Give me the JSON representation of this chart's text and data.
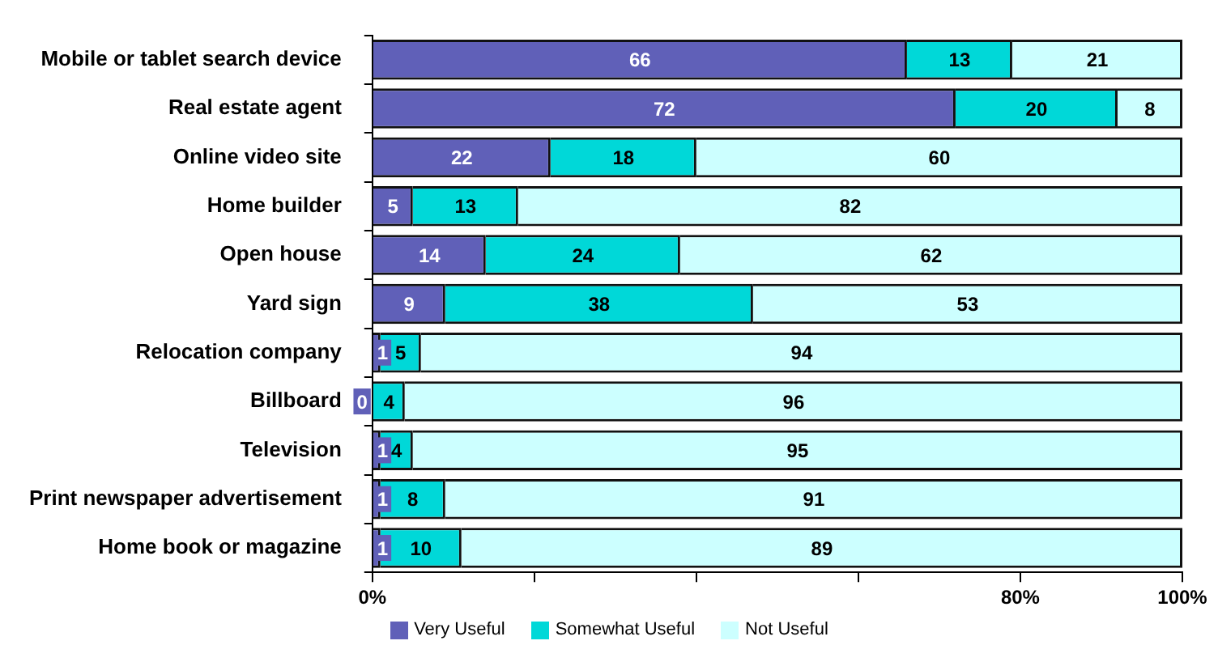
{
  "chart_data": {
    "type": "bar",
    "orientation": "horizontal",
    "stacked": true,
    "data_labels": true,
    "legend": "bottom",
    "grid": false,
    "categories": [
      "Mobile or tablet search device",
      "Real estate agent",
      "Online video site",
      "Home builder",
      "Open house",
      "Yard sign",
      "Relocation company",
      "Billboard",
      "Television",
      "Print newspaper advertisement",
      "Home book or magazine"
    ],
    "series": [
      {
        "name": "Very Useful",
        "color": "#6060b8",
        "values": [
          66,
          72,
          22,
          5,
          14,
          9,
          1,
          0,
          1,
          1,
          1
        ]
      },
      {
        "name": "Somewhat Useful",
        "color": "#00d8d8",
        "values": [
          13,
          20,
          18,
          13,
          24,
          38,
          5,
          4,
          4,
          8,
          10
        ]
      },
      {
        "name": "Not Useful",
        "color": "#ccffff",
        "values": [
          21,
          8,
          60,
          82,
          62,
          53,
          94,
          96,
          95,
          91,
          89
        ]
      }
    ],
    "xlim": [
      0,
      100
    ],
    "xticks": [
      {
        "value": 0,
        "label": "0%"
      },
      {
        "value": 20,
        "label": null
      },
      {
        "value": 40,
        "label": null
      },
      {
        "value": 60,
        "label": null
      },
      {
        "value": 80,
        "label": "80%"
      },
      {
        "value": 100,
        "label": "100%"
      }
    ]
  }
}
